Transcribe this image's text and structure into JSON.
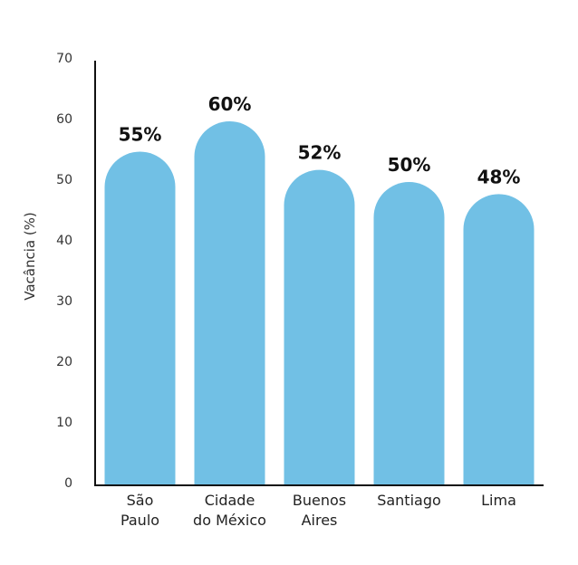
{
  "chart_data": {
    "type": "bar",
    "categories": [
      [
        "São",
        "Paulo"
      ],
      [
        "Cidade",
        "do México"
      ],
      [
        "Buenos",
        "Aires"
      ],
      [
        "Santiago"
      ],
      [
        "Lima"
      ]
    ],
    "values": [
      55,
      60,
      52,
      50,
      48
    ],
    "data_labels": [
      "55%",
      "60%",
      "52%",
      "50%",
      "48%"
    ],
    "ylabel": "Vacância (%)",
    "xlabel": "",
    "title": "",
    "ylim": [
      0,
      70
    ],
    "yticks": [
      0,
      10,
      20,
      30,
      40,
      50,
      60,
      70
    ],
    "bar_color": "#71c0e5",
    "axis_color": "#111111",
    "bar_style": "rounded-top",
    "grid": false,
    "legend": "none"
  }
}
